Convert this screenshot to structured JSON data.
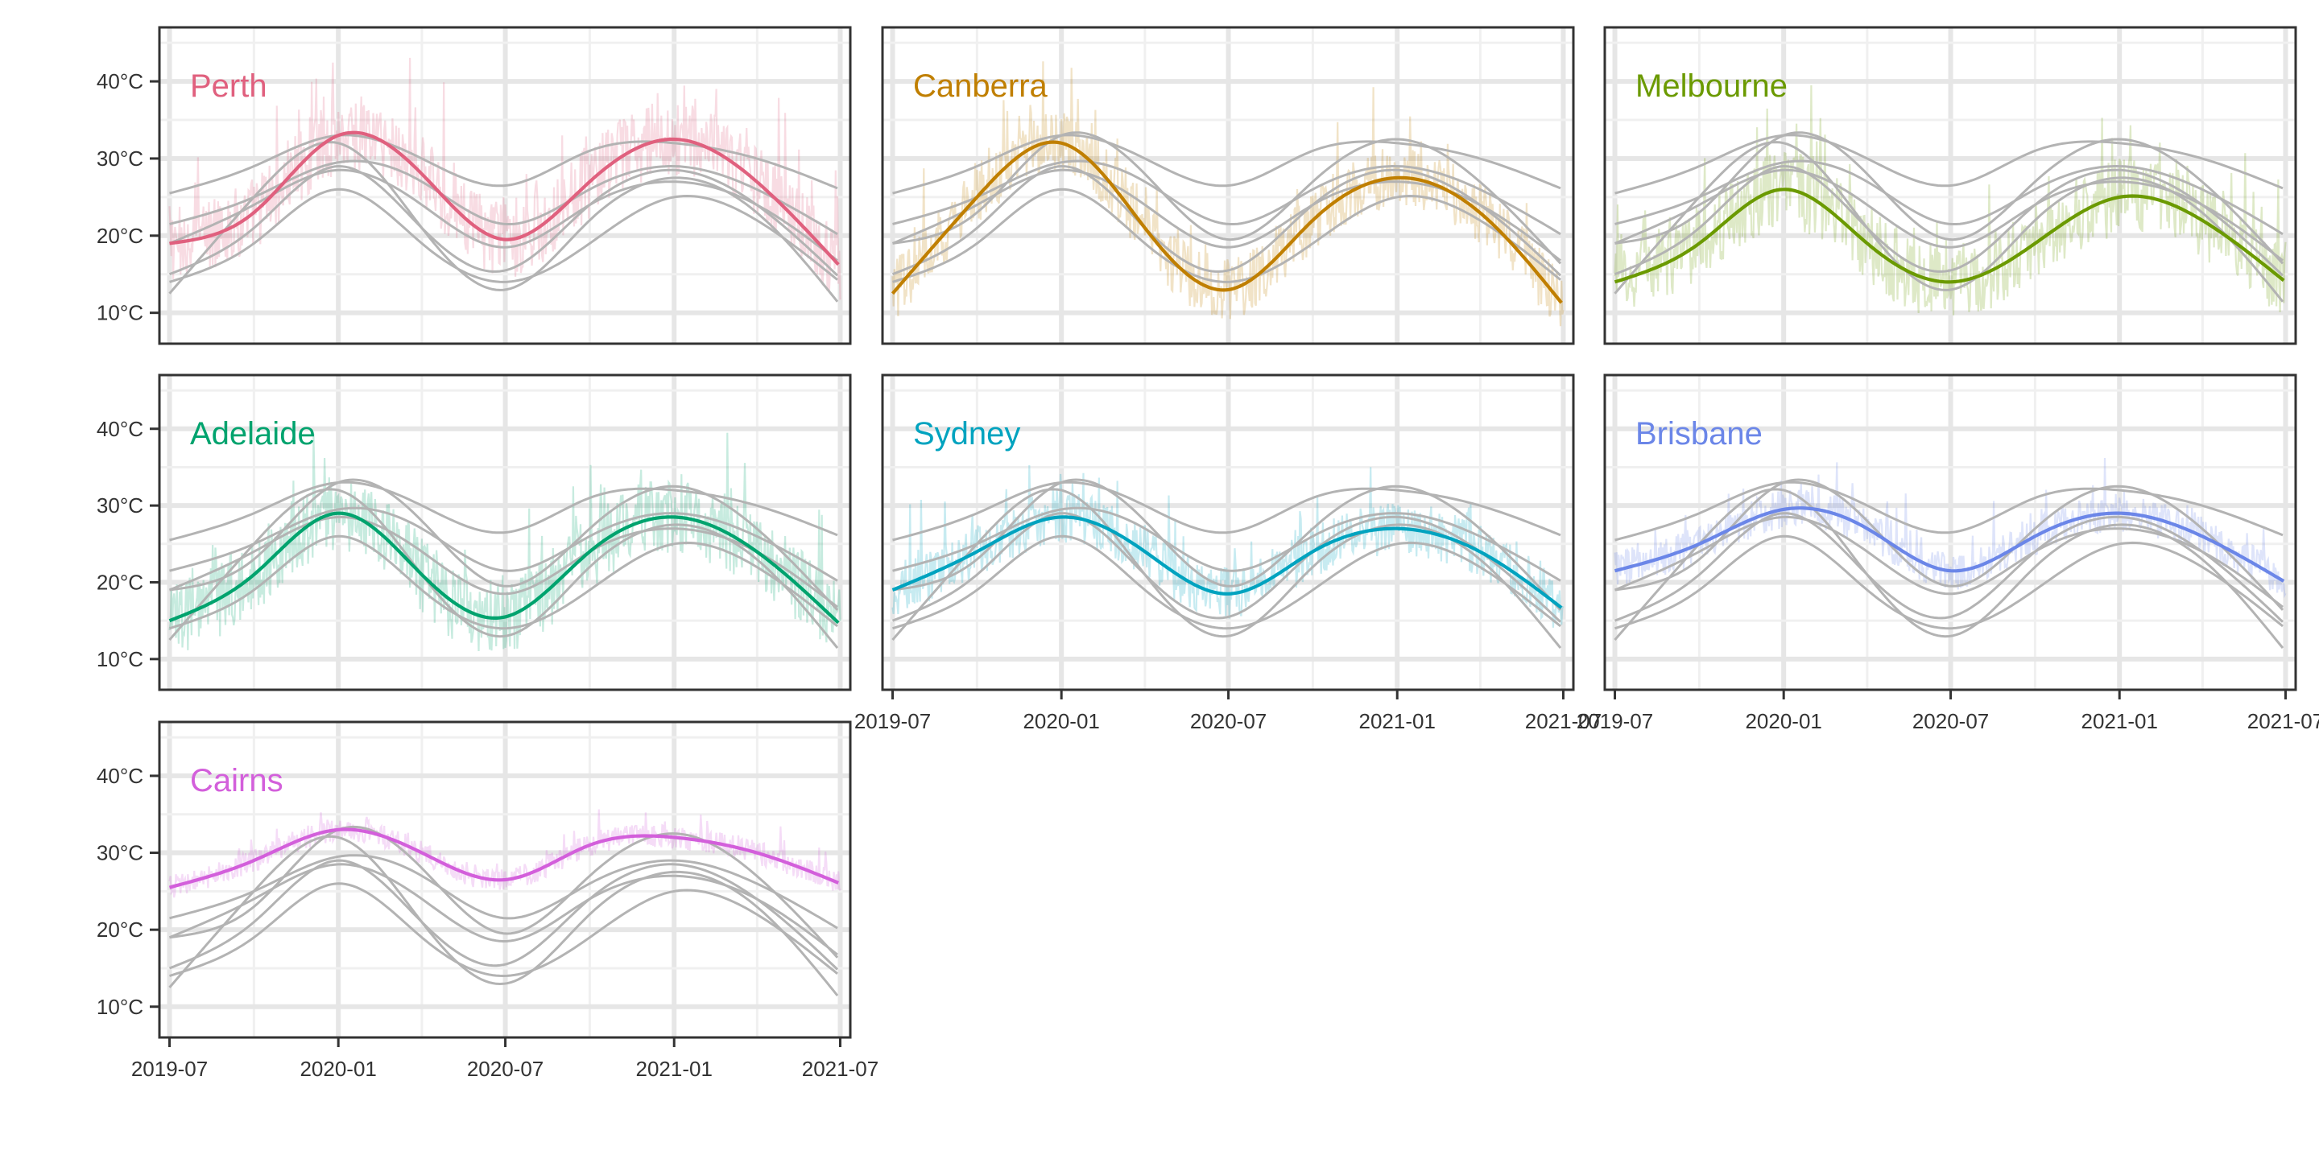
{
  "chart_data": {
    "type": "line",
    "layout": "small-multiples",
    "title": "",
    "xlabel": "",
    "ylabel": "",
    "xlim": [
      "2019-06-20",
      "2021-07-12"
    ],
    "ylim": [
      6,
      47
    ],
    "x_ticks": [
      "2019-07-01",
      "2020-01-01",
      "2020-07-01",
      "2021-01-01",
      "2021-07-01"
    ],
    "x_tick_labels": [
      "2019-07",
      "2020-01",
      "2020-07",
      "2021-01",
      "2021-07"
    ],
    "y_ticks": [
      10,
      20,
      30,
      40
    ],
    "y_tick_labels": [
      "10°C",
      "20°C",
      "30°C",
      "40°C"
    ],
    "grid": true,
    "legend": "none",
    "context_color": "#b3b3b3",
    "smooth_months": [
      "2019-07",
      "2019-10",
      "2020-01",
      "2020-04",
      "2020-07",
      "2020-10",
      "2021-01",
      "2021-04",
      "2021-07"
    ],
    "series": [
      {
        "name": "Perth",
        "color": "#e0607e",
        "smooth": [
          19,
          23,
          33,
          28,
          19.5,
          27,
          32.5,
          27,
          16
        ],
        "daily_amplitude": 5
      },
      {
        "name": "Canberra",
        "color": "#c07f00",
        "smooth": [
          12.5,
          25,
          32,
          21,
          13,
          22,
          27.5,
          23,
          11
        ],
        "daily_amplitude": 4
      },
      {
        "name": "Melbourne",
        "color": "#6b9a00",
        "smooth": [
          14,
          19,
          26,
          19,
          14,
          19,
          25,
          22,
          14
        ],
        "daily_amplitude": 5
      },
      {
        "name": "Adelaide",
        "color": "#00a36e",
        "smooth": [
          15,
          21,
          29,
          21,
          15.5,
          24,
          28.5,
          24,
          14.5
        ],
        "daily_amplitude": 5
      },
      {
        "name": "Sydney",
        "color": "#00a3bf",
        "smooth": [
          19,
          24,
          28.5,
          24,
          18.5,
          24,
          27,
          24,
          16.5
        ],
        "daily_amplitude": 3.5
      },
      {
        "name": "Brisbane",
        "color": "#6b86e8",
        "smooth": [
          21.5,
          25,
          29.5,
          27,
          21.5,
          26,
          29,
          26,
          20
        ],
        "daily_amplitude": 2.5
      },
      {
        "name": "Cairns",
        "color": "#d35fdb",
        "smooth": [
          25.5,
          29,
          33,
          30,
          26.5,
          31,
          32,
          30,
          26
        ],
        "daily_amplitude": 1.5
      }
    ]
  }
}
